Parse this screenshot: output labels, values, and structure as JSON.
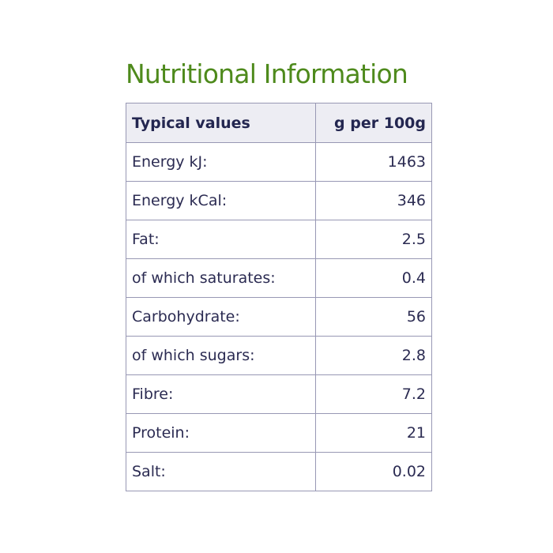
{
  "title": "Nutritional Information",
  "table": {
    "headers": {
      "label": "Typical values",
      "value": "g per 100g"
    },
    "rows": [
      {
        "label": "Energy kJ:",
        "value": "1463"
      },
      {
        "label": "Energy kCal:",
        "value": "346"
      },
      {
        "label": "Fat:",
        "value": "2.5"
      },
      {
        "label": "of which saturates:",
        "value": "0.4"
      },
      {
        "label": "Carbohydrate:",
        "value": "56"
      },
      {
        "label": "of which sugars:",
        "value": "2.8"
      },
      {
        "label": "Fibre:",
        "value": "7.2"
      },
      {
        "label": "Protein:",
        "value": "21"
      },
      {
        "label": "Salt:",
        "value": "0.02"
      }
    ]
  },
  "colors": {
    "title": "#4e8a1c",
    "text": "#2b2b52",
    "border": "#9898b4",
    "header_background": "#ededf3"
  }
}
